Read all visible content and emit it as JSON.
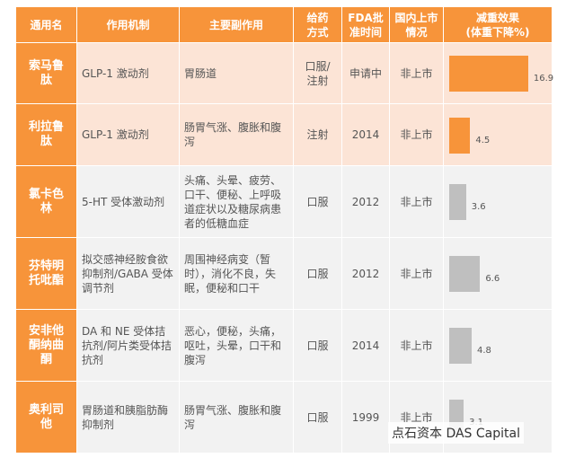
{
  "table": {
    "header": [
      "通用名",
      "作用机制",
      "主要副作用",
      "给药\n方式",
      "FDA批\n准时间",
      "国内上市\n情况",
      "减重效果\n(体重下降%)"
    ],
    "rows": [
      [
        "索马鲁肽",
        "GLP-1 激动剂",
        "胃肠道",
        "口服/\n注射",
        "申请中",
        "非上市"
      ],
      [
        "利拉鲁肽",
        "GLP-1 激动剂",
        "肠胃气涨、腹胀和腹泻",
        "注射",
        "2014",
        "非上市"
      ],
      [
        "氯卡色林",
        "5-HT 受体激动剂",
        "头痛、头晕、疲劳、口干、便秘、上呼吸道症状以及糖尿病患者的低糖血症",
        "口服",
        "2012",
        "非上市"
      ],
      [
        "芬特明托吡酯",
        "拟交感神经胺食欲抑制剂/GABA 受体调节剂",
        "周围神经病变（暂时），消化不良，失眠，便秘和口干",
        "口服",
        "2012",
        "非上市"
      ],
      [
        "安非他酮纳曲酮",
        "DA 和 NE 受体拮抗剂/阿片类受体拮抗剂",
        "恶心，便秘，头痛，呕吐，头晕，口干和腹泻",
        "口服",
        "2014",
        "非上市"
      ],
      [
        "奥利司他",
        "胃肠道和胰脂肪酶抑制剂",
        "肠胃气涨、腹胀和腹泻",
        "口服",
        "1999",
        "非上市"
      ]
    ],
    "weight_loss": [
      16.9,
      4.5,
      3.6,
      6.6,
      4.8,
      3.1
    ],
    "bar_colors": [
      "#f7943a",
      "#f7943a",
      "#bfbfbf",
      "#bfbfbf",
      "#bfbfbf",
      "#bfbfbf"
    ],
    "row_colors": [
      "#fce4d6",
      "#fce4d6",
      "#f2f2f2",
      "#f2f2f2",
      "#f2f2f2",
      "#f2f2f2"
    ]
  },
  "watermark": "点石资本 DAS Capital"
}
